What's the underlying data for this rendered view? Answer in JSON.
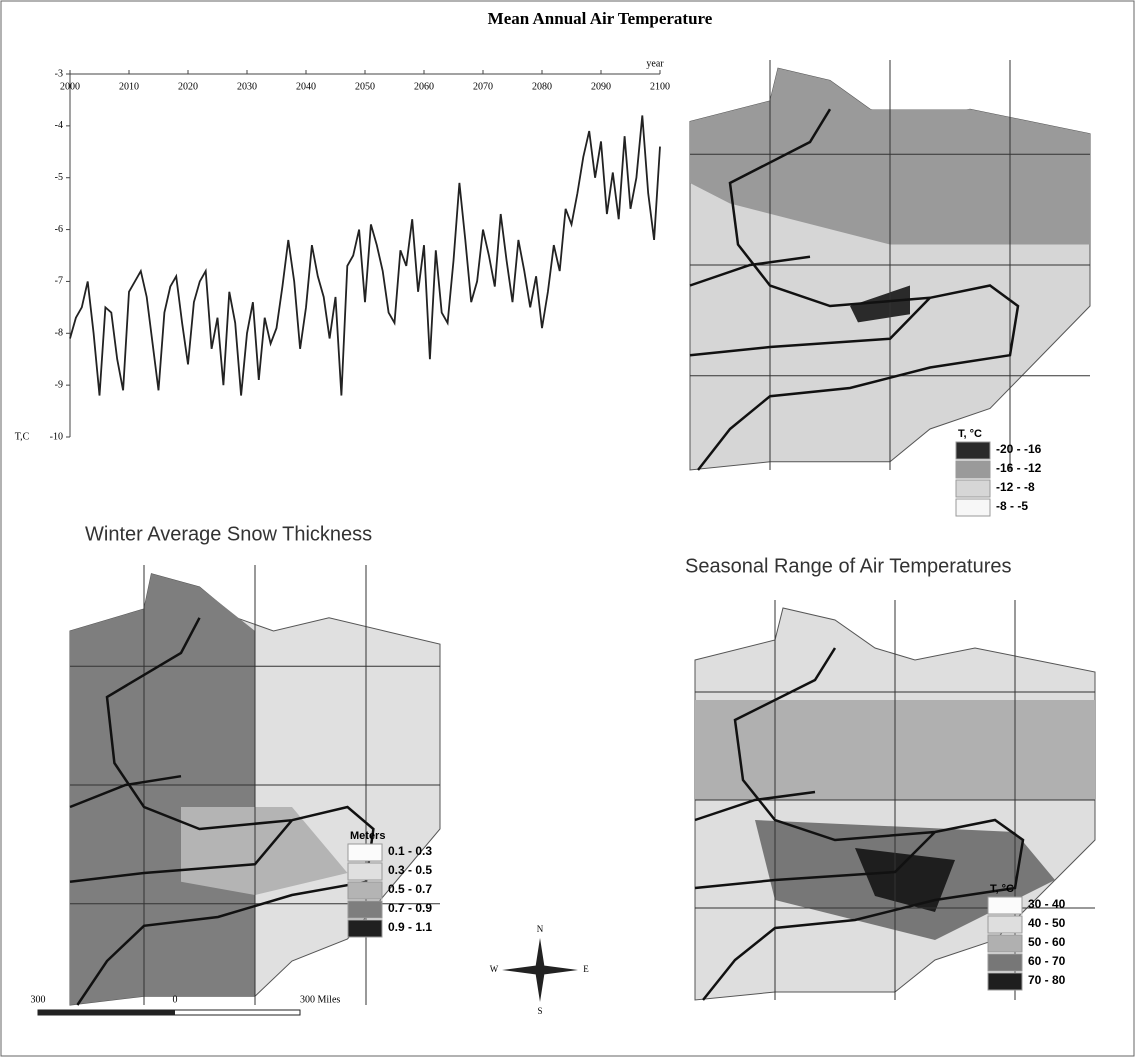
{
  "chart_data": {
    "type": "line",
    "title": "Mean Annual Air Temperature",
    "x_label": "year",
    "y_label": "T,C",
    "x": [
      2000,
      2001,
      2002,
      2003,
      2004,
      2005,
      2006,
      2007,
      2008,
      2009,
      2010,
      2011,
      2012,
      2013,
      2014,
      2015,
      2016,
      2017,
      2018,
      2019,
      2020,
      2021,
      2022,
      2023,
      2024,
      2025,
      2026,
      2027,
      2028,
      2029,
      2030,
      2031,
      2032,
      2033,
      2034,
      2035,
      2036,
      2037,
      2038,
      2039,
      2040,
      2041,
      2042,
      2043,
      2044,
      2045,
      2046,
      2047,
      2048,
      2049,
      2050,
      2051,
      2052,
      2053,
      2054,
      2055,
      2056,
      2057,
      2058,
      2059,
      2060,
      2061,
      2062,
      2063,
      2064,
      2065,
      2066,
      2067,
      2068,
      2069,
      2070,
      2071,
      2072,
      2073,
      2074,
      2075,
      2076,
      2077,
      2078,
      2079,
      2080,
      2081,
      2082,
      2083,
      2084,
      2085,
      2086,
      2087,
      2088,
      2089,
      2090,
      2091,
      2092,
      2093,
      2094,
      2095,
      2096,
      2097,
      2098,
      2099,
      2100
    ],
    "series": [
      {
        "color": "#222222",
        "values": [
          -8.1,
          -7.7,
          -7.5,
          -7.0,
          -8.0,
          -9.2,
          -7.5,
          -7.6,
          -8.5,
          -9.1,
          -7.2,
          -7.0,
          -6.8,
          -7.3,
          -8.2,
          -9.1,
          -7.6,
          -7.1,
          -6.9,
          -7.8,
          -8.6,
          -7.4,
          -7.0,
          -6.8,
          -8.3,
          -7.7,
          -9.0,
          -7.2,
          -7.8,
          -9.2,
          -8.0,
          -7.4,
          -8.9,
          -7.7,
          -8.2,
          -7.9,
          -7.1,
          -6.2,
          -7.0,
          -8.3,
          -7.5,
          -6.3,
          -6.9,
          -7.3,
          -8.1,
          -7.3,
          -9.2,
          -6.7,
          -6.5,
          -6.0,
          -7.4,
          -5.9,
          -6.3,
          -6.8,
          -7.6,
          -7.8,
          -6.4,
          -6.7,
          -5.8,
          -7.2,
          -6.3,
          -8.5,
          -6.4,
          -7.6,
          -7.8,
          -6.6,
          -5.1,
          -6.2,
          -7.4,
          -7.0,
          -6.0,
          -6.5,
          -7.1,
          -5.7,
          -6.6,
          -7.4,
          -6.2,
          -6.8,
          -7.5,
          -6.9,
          -7.9,
          -7.2,
          -6.3,
          -6.8,
          -5.6,
          -5.9,
          -5.3,
          -4.6,
          -4.1,
          -5.0,
          -4.3,
          -5.7,
          -4.9,
          -5.8,
          -4.2,
          -5.6,
          -5.0,
          -3.8,
          -5.3,
          -6.2,
          -4.4
        ]
      }
    ],
    "xlim": [
      2000,
      2100
    ],
    "xticks": [
      2000,
      2010,
      2020,
      2030,
      2040,
      2050,
      2060,
      2070,
      2080,
      2090,
      2100
    ],
    "ylim": [
      -10,
      -3
    ],
    "yticks": [
      -3,
      -4,
      -5,
      -6,
      -7,
      -8,
      -9,
      -10
    ]
  },
  "maps": [
    {
      "legend_title": "T, °C",
      "legend": [
        {
          "label": "-20 - -16",
          "color": "#2a2a2a"
        },
        {
          "label": "-16 - -12",
          "color": "#9a9a9a"
        },
        {
          "label": "-12 - -8",
          "color": "#d6d6d6"
        },
        {
          "label": "-8 - -5",
          "color": "#f7f7f7"
        }
      ]
    },
    {
      "title": "Winter Average Snow Thickness",
      "legend_title": "Meters",
      "legend": [
        {
          "label": "0.1 - 0.3",
          "color": "#fbfbfb"
        },
        {
          "label": "0.3 - 0.5",
          "color": "#e0e0e0"
        },
        {
          "label": "0.5 - 0.7",
          "color": "#b4b4b4"
        },
        {
          "label": "0.7 - 0.9",
          "color": "#7e7e7e"
        },
        {
          "label": "0.9 - 1.1",
          "color": "#202020"
        }
      ],
      "scale_bar": [
        "300",
        "0",
        "300 Miles"
      ],
      "compass": [
        "N",
        "E",
        "S",
        "W"
      ]
    },
    {
      "title": "Seasonal Range of Air Temperatures",
      "legend_title": "T, °C",
      "legend": [
        {
          "label": "30 - 40",
          "color": "#fbfbfb"
        },
        {
          "label": "40 - 50",
          "color": "#dedede"
        },
        {
          "label": "50 - 60",
          "color": "#b0b0b0"
        },
        {
          "label": "60 - 70",
          "color": "#777777"
        },
        {
          "label": "70 - 80",
          "color": "#1e1e1e"
        }
      ]
    }
  ]
}
